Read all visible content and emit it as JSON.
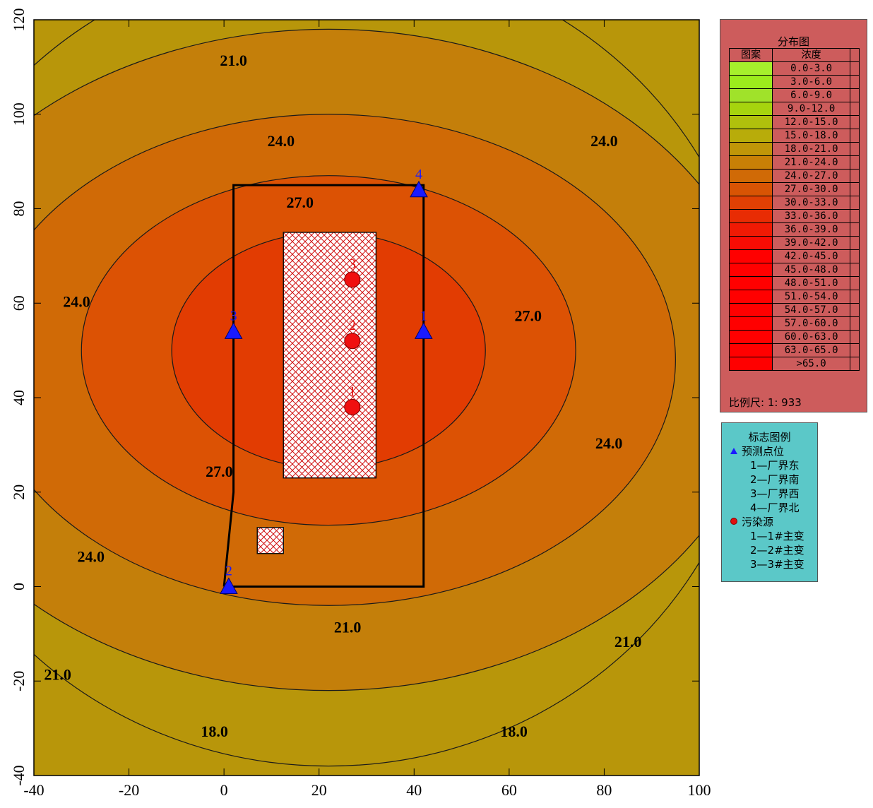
{
  "chart_data": {
    "type": "contour",
    "xlim": [
      -40,
      100
    ],
    "ylim": [
      -40,
      120
    ],
    "x_ticks": [
      -40,
      -20,
      0,
      20,
      40,
      60,
      80,
      100
    ],
    "y_ticks": [
      -40,
      -20,
      0,
      20,
      40,
      60,
      80,
      100,
      120
    ],
    "x_tick_labels": [
      "-40",
      "-20",
      "0",
      "20",
      "40",
      "60",
      "80",
      "100"
    ],
    "y_tick_labels": [
      "-40",
      "-20",
      "0",
      "20",
      "40",
      "60",
      "80",
      "100",
      "120"
    ],
    "grid": false,
    "contour_labels": [
      {
        "text": "21.0",
        "x": 2,
        "y": 111
      },
      {
        "text": "24.0",
        "x": 12,
        "y": 94
      },
      {
        "text": "27.0",
        "x": 16,
        "y": 81
      },
      {
        "text": "24.0",
        "x": -31,
        "y": 60
      },
      {
        "text": "27.0",
        "x": 64,
        "y": 57
      },
      {
        "text": "27.0",
        "x": -1,
        "y": 24
      },
      {
        "text": "24.0",
        "x": -28,
        "y": 6
      },
      {
        "text": "24.0",
        "x": 80,
        "y": 94
      },
      {
        "text": "24.0",
        "x": 81,
        "y": 30
      },
      {
        "text": "21.0",
        "x": 26,
        "y": -9
      },
      {
        "text": "21.0",
        "x": -35,
        "y": -19
      },
      {
        "text": "21.0",
        "x": 85,
        "y": -12
      },
      {
        "text": "18.0",
        "x": -2,
        "y": -31
      },
      {
        "text": "18.0",
        "x": 61,
        "y": -31
      }
    ],
    "boundary": [
      [
        0,
        0
      ],
      [
        2,
        20
      ],
      [
        2,
        85
      ],
      [
        42,
        85
      ],
      [
        42,
        0
      ],
      [
        0,
        0
      ]
    ],
    "hatched_areas": [
      {
        "x0": 12.5,
        "y0": 23,
        "x1": 32,
        "y1": 75
      },
      {
        "x0": 7,
        "y0": 7,
        "x1": 12.5,
        "y1": 12.5
      }
    ],
    "prediction_points": [
      {
        "label": "1",
        "x": 42,
        "y": 54
      },
      {
        "label": "2",
        "x": 1,
        "y": 0
      },
      {
        "label": "3",
        "x": 2,
        "y": 54
      },
      {
        "label": "4",
        "x": 41,
        "y": 84
      }
    ],
    "sources": [
      {
        "label": "1",
        "x": 27,
        "y": 38
      },
      {
        "label": "2",
        "x": 27,
        "y": 52
      },
      {
        "label": "3",
        "x": 27,
        "y": 65
      }
    ],
    "colors": {
      "level_18": "#b8960a",
      "level_21": "#c47f0a",
      "level_24": "#d06a06",
      "level_27": "#dc5204",
      "level_30": "#e23c02",
      "point_marker": "#1a1aff",
      "source_marker": "#f01010"
    }
  },
  "legend": {
    "title": "分布图",
    "col_pattern": "图案",
    "col_concentration": "浓度",
    "rows": [
      {
        "range": "0.0-3.0",
        "color": "#a6f02c"
      },
      {
        "range": "3.0-6.0",
        "color": "#9cec1c"
      },
      {
        "range": "6.0-9.0",
        "color": "#a0e22a"
      },
      {
        "range": "9.0-12.0",
        "color": "#a6d40e"
      },
      {
        "range": "12.0-15.0",
        "color": "#b0c00c"
      },
      {
        "range": "15.0-18.0",
        "color": "#b8ac0a"
      },
      {
        "range": "18.0-21.0",
        "color": "#c09608"
      },
      {
        "range": "21.0-24.0",
        "color": "#c88006"
      },
      {
        "range": "24.0-27.0",
        "color": "#d06a06"
      },
      {
        "range": "27.0-30.0",
        "color": "#d85404"
      },
      {
        "range": "30.0-33.0",
        "color": "#e04004"
      },
      {
        "range": "33.0-36.0",
        "color": "#e82c04"
      },
      {
        "range": "36.0-39.0",
        "color": "#f01a04"
      },
      {
        "range": "39.0-42.0",
        "color": "#f80c04"
      },
      {
        "range": "42.0-45.0",
        "color": "#ff0000"
      },
      {
        "range": "45.0-48.0",
        "color": "#ff0000"
      },
      {
        "range": "48.0-51.0",
        "color": "#ff0000"
      },
      {
        "range": "51.0-54.0",
        "color": "#ff0000"
      },
      {
        "range": "54.0-57.0",
        "color": "#ff0000"
      },
      {
        "range": "57.0-60.0",
        "color": "#ff0000"
      },
      {
        "range": "60.0-63.0",
        "color": "#ff0000"
      },
      {
        "range": "63.0-65.0",
        "color": "#ff0000"
      },
      {
        "range": ">65.0",
        "color": "#ff0000"
      }
    ],
    "scale_label": "比例尺:  1: 933"
  },
  "marker_legend": {
    "title": "标志图例",
    "points_label": "预测点位",
    "points": [
      "1—厂界东",
      "2—厂界南",
      "3—厂界西",
      "4—厂界北"
    ],
    "sources_label": "污染源",
    "sources": [
      "1—1#主变",
      "2—2#主变",
      "3—3#主变"
    ]
  }
}
